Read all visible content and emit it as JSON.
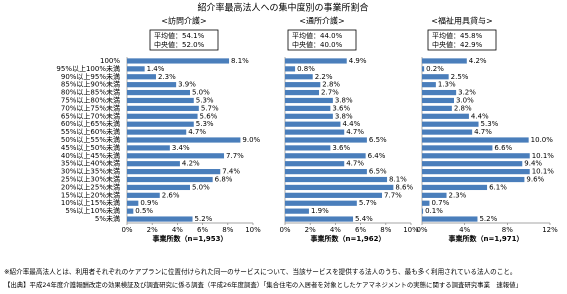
{
  "title": "紹介率最高法人への集中度別の事業所割合",
  "footnote": "※紹介率最高法人とは、利用者それぞれのケアプランに位置付けられた同一のサービスについて、当該サービスを提供する法人のうち、最も多く利用されている法人のこと。",
  "source": "【出典】平成24年度介護報酬改定の効果検証及び調査研究に係る調査（平成26年度調査）「集合住宅の入居者を対象としたケアマネジメントの実態に関する調査研究事業　速報値」",
  "chart_data": [
    {
      "type": "bar",
      "orientation": "horizontal",
      "title": "<訪問介護>",
      "stats": [
        "平均値：54.1%",
        "中央値：52.0%"
      ],
      "xlabel": "事業所数（n=1,953）",
      "color": "#4a7ebb",
      "categories": [
        "100%",
        "95%以上100%未満",
        "90%以上95%未満",
        "85%以上90%未満",
        "80%以上85%未満",
        "75%以上80%未満",
        "70%以上75%未満",
        "65%以上70%未満",
        "60%以上65%未満",
        "55%以上60%未満",
        "50%以上55%未満",
        "45%以上50%未満",
        "40%以上45%未満",
        "35%以上40%未満",
        "30%以上35%未満",
        "25%以上30%未満",
        "20%以上25%未満",
        "15%以上20%未満",
        "10%以上15%未満",
        "5%以上10%未満",
        "5%未満"
      ],
      "values": [
        8.1,
        1.4,
        2.3,
        3.9,
        5.0,
        5.3,
        5.7,
        5.6,
        5.3,
        4.7,
        9.0,
        3.4,
        7.7,
        4.2,
        7.4,
        6.8,
        5.0,
        2.6,
        0.9,
        0.5,
        5.2
      ],
      "value_labels": [
        "8.1%",
        "1.4%",
        "2.3%",
        "3.9%",
        "5.0%",
        "5.3%",
        "5.7%",
        "5.6%",
        "5.3%",
        "4.7%",
        "9.0%",
        "3.4%",
        "7.7%",
        "4.2%",
        "7.4%",
        "6.8%",
        "5.0%",
        "2.6%",
        "0.9%",
        "0.5%",
        "5.2%"
      ],
      "xlim": [
        0,
        10
      ],
      "xticks": [
        {
          "value": 0,
          "label": "0%"
        },
        {
          "value": 2,
          "label": "2%"
        },
        {
          "value": 4,
          "label": "4%"
        },
        {
          "value": 6,
          "label": "6%"
        },
        {
          "value": 8,
          "label": "8%"
        },
        {
          "value": 10,
          "label": "10%"
        }
      ]
    },
    {
      "type": "bar",
      "orientation": "horizontal",
      "title": "<通所介護>",
      "stats": [
        "平均値：44.0%",
        "中央値：40.0%"
      ],
      "xlabel": "事業所数（n=1,962）",
      "color": "#4a7ebb",
      "values": [
        4.9,
        0.8,
        2.2,
        2.8,
        2.7,
        3.8,
        3.6,
        3.8,
        4.4,
        4.7,
        6.5,
        3.6,
        6.4,
        4.7,
        6.5,
        8.1,
        8.6,
        7.7,
        5.7,
        1.9,
        5.4
      ],
      "value_labels": [
        "4.9%",
        "0.8%",
        "2.2%",
        "2.8%",
        "2.7%",
        "3.8%",
        "3.6%",
        "3.8%",
        "4.4%",
        "4.7%",
        "6.5%",
        "3.6%",
        "6.4%",
        "4.7%",
        "6.5%",
        "8.1%",
        "8.6%",
        "7.7%",
        "5.7%",
        "1.9%",
        "5.4%"
      ],
      "xlim": [
        0,
        10
      ],
      "xticks": [
        {
          "value": 0,
          "label": "0%"
        },
        {
          "value": 2,
          "label": "2%"
        },
        {
          "value": 4,
          "label": "4%"
        },
        {
          "value": 6,
          "label": "6%"
        },
        {
          "value": 8,
          "label": "8%"
        },
        {
          "value": 10,
          "label": "10%"
        }
      ]
    },
    {
      "type": "bar",
      "orientation": "horizontal",
      "title": "<福祉用具貸与>",
      "stats": [
        "平均値：45.8%",
        "中央値：42.9%"
      ],
      "xlabel": "事業所数（n=1,971）",
      "color": "#4a7ebb",
      "values": [
        4.2,
        0.2,
        2.5,
        1.3,
        3.2,
        3.0,
        2.8,
        4.4,
        5.3,
        4.7,
        10.0,
        6.6,
        10.1,
        9.4,
        10.1,
        9.6,
        6.1,
        2.3,
        0.7,
        0.1,
        5.2
      ],
      "value_labels": [
        "4.2%",
        "0.2%",
        "2.5%",
        "1.3%",
        "3.2%",
        "3.0%",
        "2.8%",
        "4.4%",
        "5.3%",
        "4.7%",
        "10.0%",
        "6.6%",
        "10.1%",
        "9.4%",
        "10.1%",
        "9.6%",
        "6.1%",
        "2.3%",
        "0.7%",
        "0.1%",
        "5.2%"
      ],
      "xlim": [
        0,
        12
      ],
      "xticks": [
        {
          "value": 0,
          "label": "0%"
        },
        {
          "value": 4,
          "label": "4%"
        },
        {
          "value": 8,
          "label": "8%"
        },
        {
          "value": 12,
          "label": "12%"
        }
      ]
    }
  ]
}
